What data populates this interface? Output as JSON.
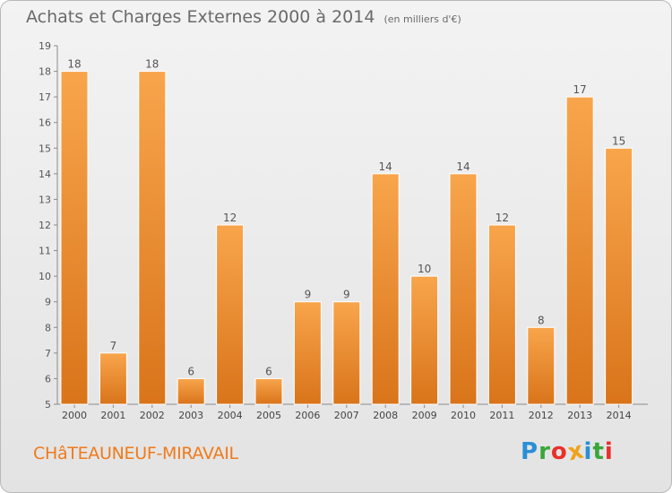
{
  "title": "Achats et Charges Externes 2000 à 2014",
  "subtitle": "(en milliers d'€)",
  "commune": "CHâTEAUNEUF-MIRAVAIL",
  "brand": {
    "text": "Proxiti",
    "letters": [
      {
        "ch": "P",
        "color": "#2a8fd6"
      },
      {
        "ch": "r",
        "color": "#3aa63a"
      },
      {
        "ch": "o",
        "color": "#e8302a"
      },
      {
        "ch": "x",
        "color": "#f0a21a"
      },
      {
        "ch": "i",
        "color": "#2a8fd6"
      },
      {
        "ch": "t",
        "color": "#3aa63a"
      },
      {
        "ch": "i",
        "color": "#e8302a"
      }
    ]
  },
  "colors": {
    "bar_top": "#f8a54c",
    "bar_bottom": "#d9741a",
    "title": "#6a6a6a",
    "commune": "#f07a1a"
  },
  "chart_data": {
    "type": "bar",
    "categories": [
      "2000",
      "2001",
      "2002",
      "2003",
      "2004",
      "2005",
      "2006",
      "2007",
      "2008",
      "2009",
      "2010",
      "2011",
      "2012",
      "2013",
      "2014"
    ],
    "values": [
      18,
      7,
      18,
      6,
      12,
      6,
      9,
      9,
      14,
      10,
      14,
      12,
      8,
      17,
      15
    ],
    "ylim": [
      5,
      19
    ],
    "yticks": [
      5,
      6,
      7,
      8,
      9,
      10,
      11,
      12,
      13,
      14,
      15,
      16,
      17,
      18,
      19
    ],
    "grid": false,
    "data_labels": true
  }
}
